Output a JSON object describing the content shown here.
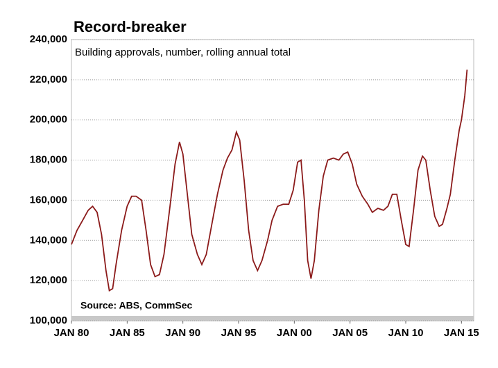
{
  "chart_data": {
    "type": "line",
    "title": "Record-breaker",
    "subtitle": "Building approvals, number, rolling annual total",
    "annotation": "Source: ABS, CommSec",
    "x": [
      1980.0,
      1980.5,
      1981.0,
      1981.5,
      1981.9,
      1982.3,
      1982.7,
      1983.1,
      1983.4,
      1983.7,
      1984.0,
      1984.5,
      1985.0,
      1985.4,
      1985.8,
      1986.3,
      1986.7,
      1987.1,
      1987.5,
      1987.9,
      1988.3,
      1988.8,
      1989.3,
      1989.7,
      1990.0,
      1990.4,
      1990.8,
      1991.3,
      1991.7,
      1992.1,
      1992.6,
      1993.1,
      1993.6,
      1994.0,
      1994.4,
      1994.8,
      1995.1,
      1995.5,
      1995.9,
      1996.3,
      1996.7,
      1997.1,
      1997.6,
      1998.0,
      1998.5,
      1999.0,
      1999.5,
      1999.9,
      2000.3,
      2000.6,
      2000.9,
      2001.2,
      2001.5,
      2001.8,
      2002.2,
      2002.6,
      2003.0,
      2003.5,
      2004.0,
      2004.4,
      2004.8,
      2005.2,
      2005.6,
      2006.1,
      2006.6,
      2007.0,
      2007.5,
      2008.0,
      2008.4,
      2008.8,
      2009.2,
      2009.6,
      2010.0,
      2010.3,
      2010.7,
      2011.1,
      2011.5,
      2011.8,
      2012.2,
      2012.6,
      2013.0,
      2013.3,
      2013.7,
      2014.0,
      2014.4,
      2014.8,
      2015.0,
      2015.3,
      2015.5
    ],
    "series": [
      {
        "name": "Building approvals",
        "color": "#8b1a1a",
        "values": [
          138000,
          145000,
          150000,
          155000,
          157000,
          154000,
          143000,
          125000,
          115000,
          116000,
          128000,
          145000,
          157000,
          162000,
          162000,
          160000,
          145000,
          128000,
          122000,
          123000,
          133000,
          155000,
          178000,
          189000,
          183000,
          163000,
          143000,
          133000,
          128000,
          133000,
          148000,
          163000,
          175000,
          181000,
          185000,
          194000,
          190000,
          170000,
          145000,
          130000,
          125000,
          130000,
          140000,
          150000,
          157000,
          158000,
          158000,
          165000,
          179000,
          180000,
          160000,
          130000,
          121000,
          130000,
          155000,
          172000,
          180000,
          181000,
          180000,
          183000,
          184000,
          178000,
          168000,
          162000,
          158000,
          154000,
          156000,
          155000,
          157000,
          163000,
          163000,
          150000,
          138000,
          137000,
          155000,
          175000,
          182000,
          180000,
          165000,
          152000,
          147000,
          148000,
          156000,
          163000,
          180000,
          195000,
          200000,
          212000,
          225000
        ]
      }
    ],
    "xlim": [
      1980,
      2016.1
    ],
    "xticks": [
      {
        "value": 1980,
        "label": "JAN 80"
      },
      {
        "value": 1985,
        "label": "JAN 85"
      },
      {
        "value": 1990,
        "label": "JAN 90"
      },
      {
        "value": 1995,
        "label": "JAN 95"
      },
      {
        "value": 2000,
        "label": "JAN 00"
      },
      {
        "value": 2005,
        "label": "JAN 05"
      },
      {
        "value": 2010,
        "label": "JAN 10"
      },
      {
        "value": 2015,
        "label": "JAN 15"
      }
    ],
    "ylim": [
      100000,
      240000
    ],
    "yticks": [
      {
        "value": 100000,
        "label": "100,000"
      },
      {
        "value": 120000,
        "label": "120,000"
      },
      {
        "value": 140000,
        "label": "140,000"
      },
      {
        "value": 160000,
        "label": "160,000"
      },
      {
        "value": 180000,
        "label": "180,000"
      },
      {
        "value": 200000,
        "label": "200,000"
      },
      {
        "value": 220000,
        "label": "220,000"
      },
      {
        "value": 240000,
        "label": "240,000"
      }
    ],
    "grid": true
  }
}
